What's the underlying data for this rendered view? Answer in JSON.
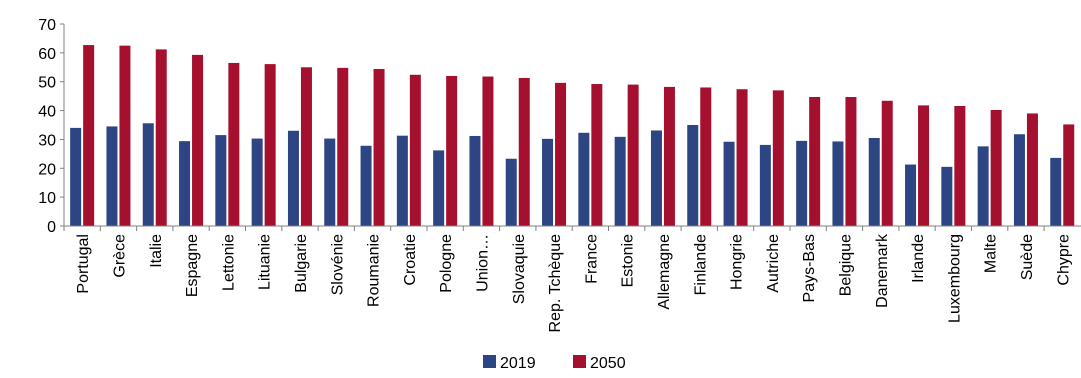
{
  "chart_data": {
    "type": "bar",
    "title": "",
    "xlabel": "",
    "ylabel": "",
    "ylim": [
      0,
      70
    ],
    "yticks": [
      0,
      10,
      20,
      30,
      40,
      50,
      60,
      70
    ],
    "grid": false,
    "legend_position": "bottom",
    "categories": [
      "Portugal",
      "Grèce",
      "Italie",
      "Espagne",
      "Lettonie",
      "Lituanie",
      "Bulgarie",
      "Slovénie",
      "Roumanie",
      "Croatie",
      "Pologne",
      "Union…",
      "Slovaquie",
      "Rep. Tchèque",
      "France",
      "Estonie",
      "Allemagne",
      "Finlande",
      "Hongrie",
      "Autriche",
      "Pays-Bas",
      "Belgique",
      "Danemark",
      "Irlande",
      "Luxembourg",
      "Malte",
      "Suède",
      "Chypre"
    ],
    "series": [
      {
        "name": "2019",
        "color": "#2e4583",
        "values": [
          34,
          34.5,
          35.6,
          29.4,
          31.5,
          30.3,
          33,
          30.3,
          27.8,
          31.3,
          26.2,
          31.2,
          23.3,
          30.2,
          32.3,
          30.9,
          33.1,
          35,
          29.2,
          28.1,
          29.5,
          29.3,
          30.5,
          21.3,
          20.5,
          27.6,
          31.8,
          23.6
        ]
      },
      {
        "name": "2050",
        "color": "#a5102f",
        "values": [
          62.7,
          62.5,
          61.2,
          59.3,
          56.5,
          56.1,
          55,
          54.8,
          54.4,
          52.4,
          52,
          51.8,
          51.3,
          49.6,
          49.2,
          49,
          48.2,
          48,
          47.4,
          47,
          44.7,
          44.7,
          43.4,
          41.8,
          41.6,
          40.2,
          39,
          35.2
        ]
      }
    ]
  }
}
